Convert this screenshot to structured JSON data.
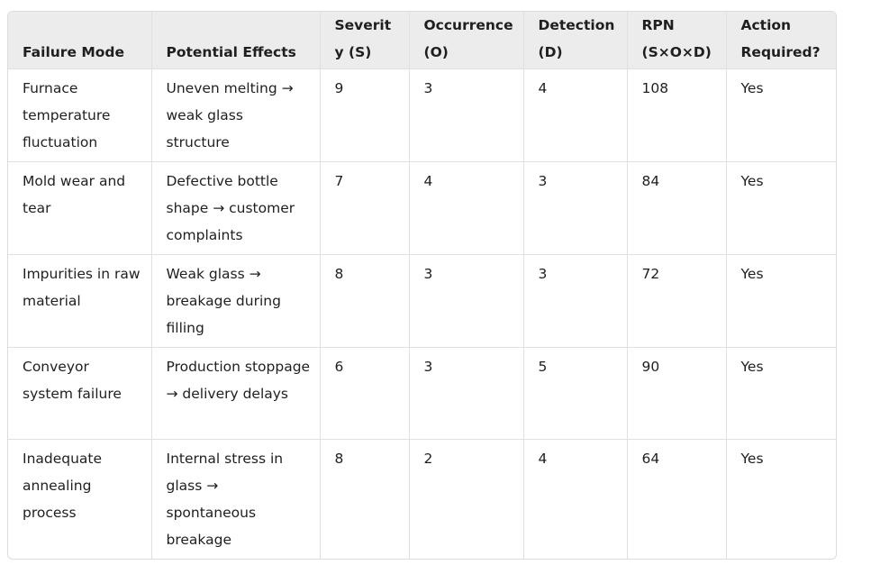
{
  "table": {
    "headers": [
      "Failure Mode",
      "Potential Effects",
      "Severity (S)",
      "Occurrence (O)",
      "Detection (D)",
      "RPN (S×O×D)",
      "Action Required?"
    ],
    "rows": [
      [
        "Furnace temperature fluctuation",
        "Uneven melting → weak glass structure",
        9,
        3,
        4,
        108,
        "Yes"
      ],
      [
        "Mold wear and tear",
        "Defective bottle shape → customer complaints",
        7,
        4,
        3,
        84,
        "Yes"
      ],
      [
        "Impurities in raw material",
        "Weak glass → breakage during filling",
        8,
        3,
        3,
        72,
        "Yes"
      ],
      [
        "Conveyor system failure",
        "Production stoppage → delivery delays",
        6,
        3,
        5,
        90,
        "Yes"
      ],
      [
        "Inadequate annealing process",
        "Internal stress in glass → spontaneous breakage",
        8,
        2,
        4,
        64,
        "Yes"
      ]
    ]
  }
}
